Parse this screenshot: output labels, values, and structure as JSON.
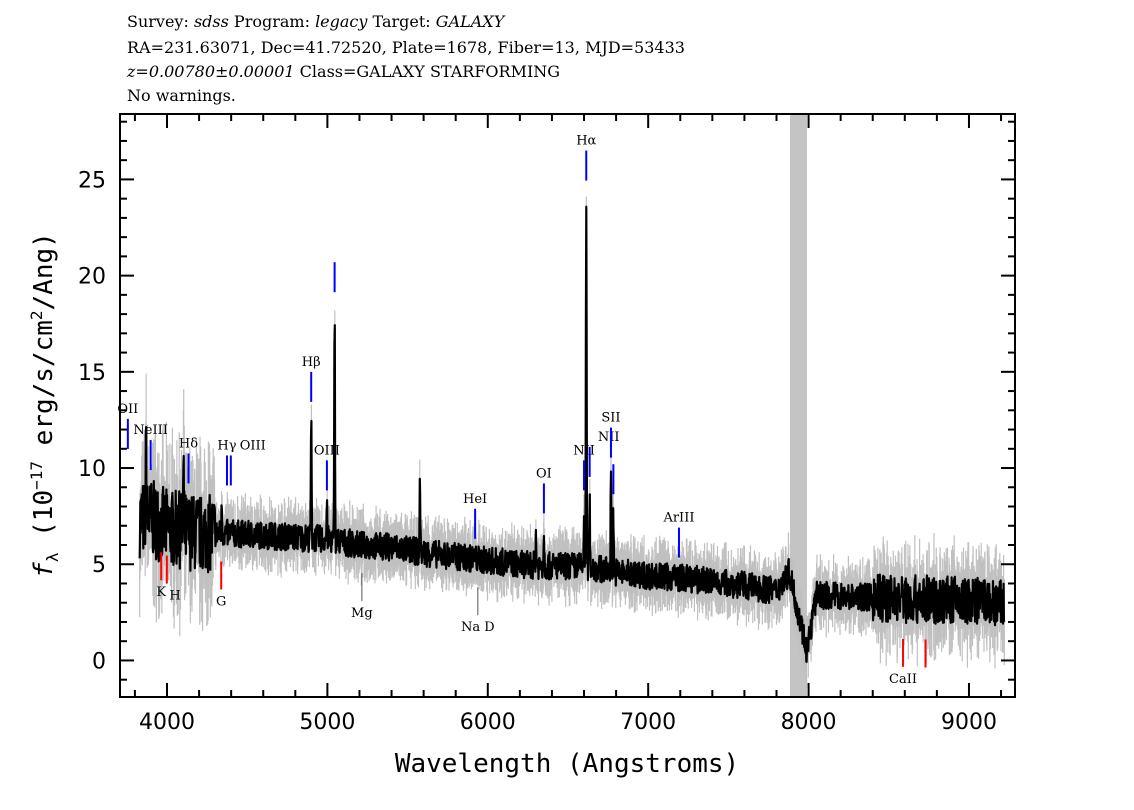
{
  "header": {
    "line1": {
      "survey_label": "Survey:",
      "survey": "sdss",
      "program_label": "Program:",
      "program": "legacy",
      "target_label": "Target:",
      "target": "GALAXY"
    },
    "line2": "RA=231.63071, Dec=41.72520, Plate=1678, Fiber=13, MJD=53433",
    "line3": {
      "z": "z=0.00780±0.00001",
      "class": "Class=GALAXY STARFORMING"
    },
    "line4": "No warnings."
  },
  "chart_data": {
    "type": "line",
    "title": "",
    "xlabel": "Wavelength (Angstroms)",
    "ylabel": {
      "f": "f",
      "sub": "λ",
      "pre": " (10",
      "exp": "−17",
      "mid": " erg/s/cm",
      "exp2": "2",
      "post": "/Ang)"
    },
    "xlim": [
      3707,
      9287
    ],
    "ylim": [
      -1.9,
      28.4
    ],
    "x_ticks": [
      4000,
      5000,
      6000,
      7000,
      8000,
      9000
    ],
    "y_ticks": [
      0,
      5,
      10,
      15,
      20,
      25
    ],
    "grid": false,
    "colors": {
      "flux": "#000000",
      "error_band": "#c0c0c0",
      "emission_marker": "#0000ff",
      "absorption_marker": "#ff0000",
      "masked_region": "#c4c4c4"
    },
    "masked_region": [
      7884,
      7990
    ],
    "continuum": [
      [
        3800,
        7.3
      ],
      [
        3900,
        7.4
      ],
      [
        4000,
        6.9
      ],
      [
        4200,
        6.6
      ],
      [
        4400,
        6.6
      ],
      [
        4600,
        6.5
      ],
      [
        4800,
        6.4
      ],
      [
        5000,
        6.3
      ],
      [
        5200,
        6.0
      ],
      [
        5400,
        5.9
      ],
      [
        5600,
        5.6
      ],
      [
        5800,
        5.4
      ],
      [
        6000,
        5.2
      ],
      [
        6200,
        5.0
      ],
      [
        6400,
        4.9
      ],
      [
        6600,
        4.9
      ],
      [
        6800,
        4.6
      ],
      [
        7000,
        4.4
      ],
      [
        7200,
        4.3
      ],
      [
        7400,
        4.1
      ],
      [
        7600,
        3.9
      ],
      [
        7800,
        3.6
      ],
      [
        7880,
        4.6
      ],
      [
        7990,
        0.5
      ],
      [
        8050,
        3.4
      ],
      [
        8300,
        3.3
      ],
      [
        8600,
        3.2
      ],
      [
        9000,
        3.1
      ],
      [
        9220,
        2.9
      ]
    ],
    "emission_peaks": [
      [
        3760,
        8.5
      ],
      [
        3870,
        11.2
      ],
      [
        4103,
        9.5
      ],
      [
        4342,
        8.0
      ],
      [
        4899,
        12.4
      ],
      [
        4997,
        7.8
      ],
      [
        5045,
        18.1
      ],
      [
        5577,
        9.6
      ],
      [
        6300,
        6.6
      ],
      [
        6350,
        6.6
      ],
      [
        6600,
        7.8
      ],
      [
        6614,
        23.9
      ],
      [
        6635,
        8.5
      ],
      [
        6768,
        9.5
      ],
      [
        6783,
        7.6
      ]
    ],
    "line_markers": [
      {
        "label": "OII",
        "wavelength": 3756,
        "kind": "emission"
      },
      {
        "label": "NeIII",
        "wavelength": 3898,
        "kind": "emission"
      },
      {
        "label": "Hδ",
        "wavelength": 4134,
        "kind": "emission"
      },
      {
        "label": "Hγ",
        "wavelength": 4374,
        "kind": "emission"
      },
      {
        "label": "OIII",
        "wavelength": 4398,
        "kind": "emission"
      },
      {
        "label": "Hβ",
        "wavelength": 4899,
        "kind": "emission"
      },
      {
        "label": "OIII",
        "wavelength": 4997,
        "kind": "emission"
      },
      {
        "label": "",
        "wavelength": 5045,
        "kind": "emission"
      },
      {
        "label": "HeI",
        "wavelength": 5921,
        "kind": "emission"
      },
      {
        "label": "OI",
        "wavelength": 6350,
        "kind": "emission"
      },
      {
        "label": "NII",
        "wavelength": 6600,
        "kind": "emission"
      },
      {
        "label": "Hα",
        "wavelength": 6614,
        "kind": "emission"
      },
      {
        "label": "NII",
        "wavelength": 6635,
        "kind": "emission"
      },
      {
        "label": "SII",
        "wavelength": 6768,
        "kind": "emission"
      },
      {
        "label": "",
        "wavelength": 6783,
        "kind": "emission"
      },
      {
        "label": "ArIII",
        "wavelength": 7192,
        "kind": "emission"
      },
      {
        "label": "K",
        "wavelength": 3964,
        "kind": "absorption"
      },
      {
        "label": "H",
        "wavelength": 3999,
        "kind": "absorption"
      },
      {
        "label": "G",
        "wavelength": 4338,
        "kind": "absorption"
      },
      {
        "label": "Mg",
        "wavelength": 5215,
        "kind": "absorption"
      },
      {
        "label": "Na D",
        "wavelength": 5938,
        "kind": "absorption"
      },
      {
        "label": "CaII",
        "wavelength": 8589,
        "kind": "absorption"
      },
      {
        "label": "",
        "wavelength": 8729,
        "kind": "absorption"
      }
    ]
  }
}
